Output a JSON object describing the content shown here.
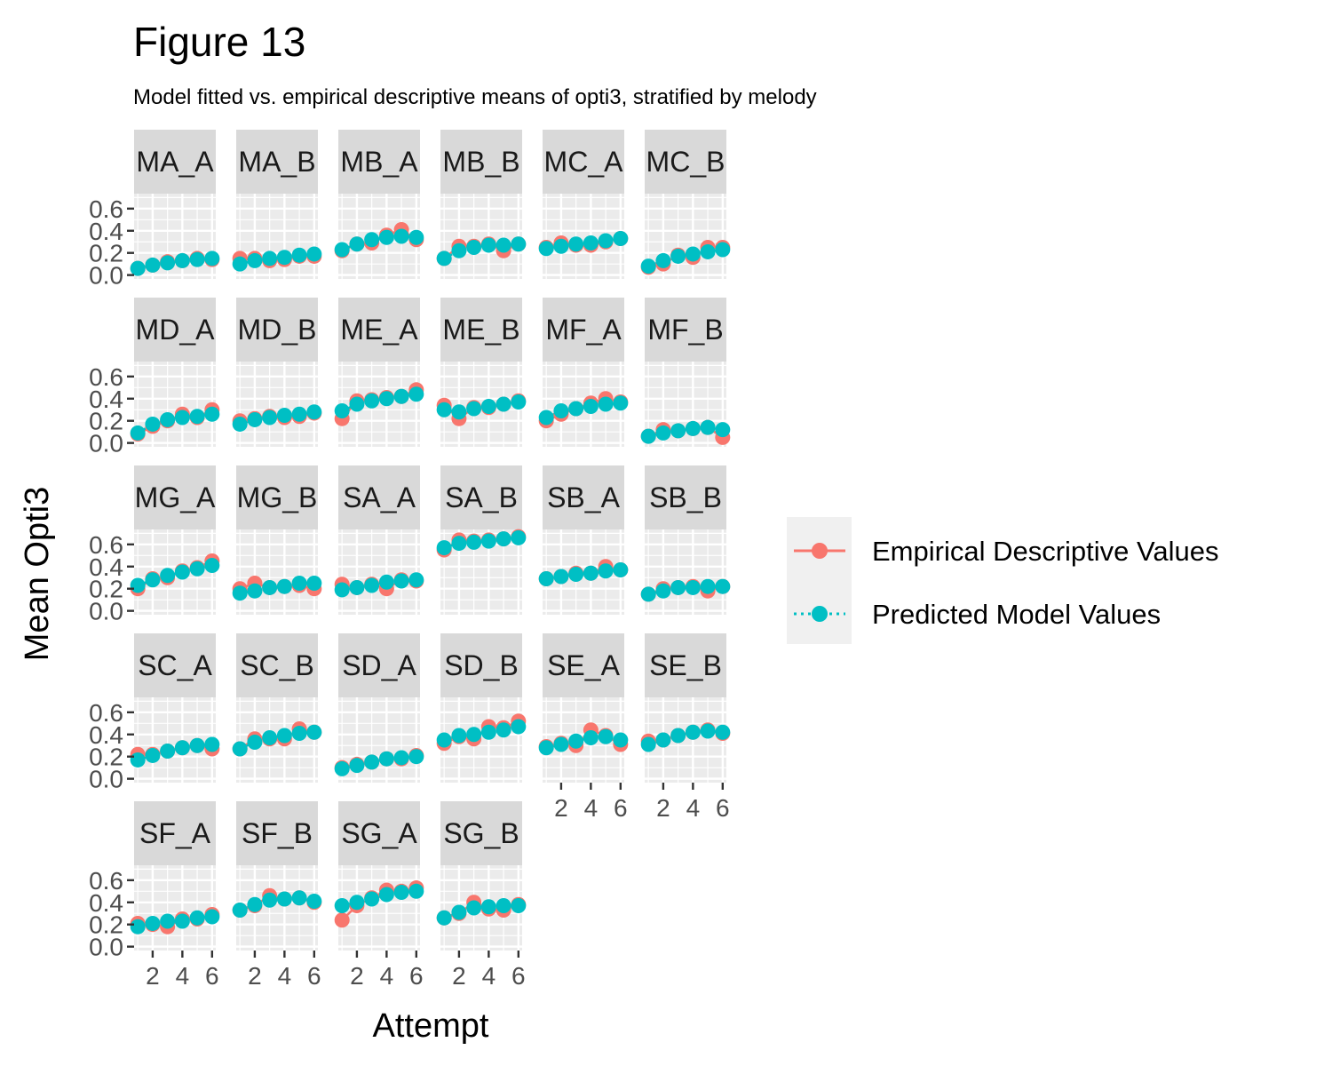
{
  "title": "Figure 13",
  "subtitle": "Model fitted vs. empirical descriptive means of opti3, stratified by melody",
  "chart_data": {
    "type": "line",
    "facet": "melody",
    "xlabel": "Attempt",
    "ylabel": "Mean Opti3",
    "xlim": [
      1,
      6
    ],
    "ylim": [
      0,
      0.7
    ],
    "x_ticks": [
      2,
      4,
      6
    ],
    "y_ticks": [
      0.0,
      0.2,
      0.4,
      0.6
    ],
    "x_tick_labels": [
      "2",
      "4",
      "6"
    ],
    "y_tick_labels": [
      "0.0",
      "0.2",
      "0.4",
      "0.6"
    ],
    "x": [
      1,
      2,
      3,
      4,
      5,
      6
    ],
    "grid": true,
    "legend_position": "right",
    "series_styles": [
      {
        "name": "Empirical Descriptive Values",
        "color": "#F8766D",
        "linetype": "solid"
      },
      {
        "name": "Predicted Model Values",
        "color": "#00BFC4",
        "linetype": "dotted"
      }
    ],
    "panels": [
      {
        "label": "MA_A",
        "empirical": [
          0.06,
          0.09,
          0.12,
          0.13,
          0.15,
          0.14
        ],
        "predicted": [
          0.06,
          0.09,
          0.11,
          0.13,
          0.14,
          0.15
        ]
      },
      {
        "label": "MA_B",
        "empirical": [
          0.15,
          0.15,
          0.13,
          0.14,
          0.17,
          0.17
        ],
        "predicted": [
          0.1,
          0.13,
          0.15,
          0.16,
          0.18,
          0.19
        ]
      },
      {
        "label": "MB_A",
        "empirical": [
          0.22,
          0.28,
          0.29,
          0.36,
          0.41,
          0.32
        ],
        "predicted": [
          0.23,
          0.28,
          0.32,
          0.34,
          0.35,
          0.34
        ]
      },
      {
        "label": "MB_B",
        "empirical": [
          0.15,
          0.26,
          0.26,
          0.28,
          0.22,
          0.28
        ],
        "predicted": [
          0.15,
          0.22,
          0.25,
          0.27,
          0.27,
          0.28
        ]
      },
      {
        "label": "MC_A",
        "empirical": [
          0.25,
          0.29,
          0.27,
          0.27,
          0.3,
          0.33
        ],
        "predicted": [
          0.24,
          0.26,
          0.28,
          0.29,
          0.31,
          0.33
        ]
      },
      {
        "label": "MC_B",
        "empirical": [
          0.07,
          0.1,
          0.18,
          0.16,
          0.25,
          0.25
        ],
        "predicted": [
          0.08,
          0.13,
          0.17,
          0.19,
          0.21,
          0.23
        ]
      },
      {
        "label": "MD_A",
        "empirical": [
          0.08,
          0.15,
          0.2,
          0.26,
          0.23,
          0.3
        ],
        "predicted": [
          0.09,
          0.17,
          0.21,
          0.23,
          0.24,
          0.26
        ]
      },
      {
        "label": "MD_B",
        "empirical": [
          0.2,
          0.22,
          0.24,
          0.23,
          0.24,
          0.27
        ],
        "predicted": [
          0.17,
          0.21,
          0.23,
          0.25,
          0.26,
          0.28
        ]
      },
      {
        "label": "ME_A",
        "empirical": [
          0.22,
          0.38,
          0.39,
          0.41,
          0.42,
          0.48
        ],
        "predicted": [
          0.29,
          0.35,
          0.38,
          0.4,
          0.42,
          0.44
        ]
      },
      {
        "label": "ME_B",
        "empirical": [
          0.34,
          0.22,
          0.32,
          0.32,
          0.35,
          0.38
        ],
        "predicted": [
          0.3,
          0.28,
          0.31,
          0.33,
          0.35,
          0.37
        ]
      },
      {
        "label": "MF_A",
        "empirical": [
          0.2,
          0.26,
          0.31,
          0.36,
          0.4,
          0.37
        ],
        "predicted": [
          0.23,
          0.29,
          0.31,
          0.33,
          0.35,
          0.36
        ]
      },
      {
        "label": "MF_B",
        "empirical": [
          0.06,
          0.12,
          0.11,
          0.13,
          0.14,
          0.05
        ],
        "predicted": [
          0.06,
          0.09,
          0.11,
          0.13,
          0.14,
          0.12
        ]
      },
      {
        "label": "MG_A",
        "empirical": [
          0.2,
          0.29,
          0.3,
          0.36,
          0.39,
          0.45
        ],
        "predicted": [
          0.23,
          0.28,
          0.32,
          0.35,
          0.38,
          0.41
        ]
      },
      {
        "label": "MG_B",
        "empirical": [
          0.2,
          0.25,
          0.21,
          0.22,
          0.23,
          0.2
        ],
        "predicted": [
          0.16,
          0.18,
          0.21,
          0.22,
          0.25,
          0.25
        ]
      },
      {
        "label": "SA_A",
        "empirical": [
          0.24,
          0.21,
          0.24,
          0.2,
          0.28,
          0.27
        ],
        "predicted": [
          0.19,
          0.21,
          0.23,
          0.26,
          0.27,
          0.28
        ]
      },
      {
        "label": "SA_B",
        "empirical": [
          0.55,
          0.64,
          0.63,
          0.64,
          0.65,
          0.67
        ],
        "predicted": [
          0.57,
          0.61,
          0.62,
          0.63,
          0.65,
          0.66
        ]
      },
      {
        "label": "SB_A",
        "empirical": [
          0.29,
          0.31,
          0.34,
          0.34,
          0.4,
          0.37
        ],
        "predicted": [
          0.29,
          0.31,
          0.33,
          0.34,
          0.36,
          0.37
        ]
      },
      {
        "label": "SB_B",
        "empirical": [
          0.15,
          0.2,
          0.21,
          0.22,
          0.18,
          0.22
        ],
        "predicted": [
          0.15,
          0.18,
          0.21,
          0.21,
          0.22,
          0.22
        ]
      },
      {
        "label": "SC_A",
        "empirical": [
          0.22,
          0.22,
          0.25,
          0.28,
          0.3,
          0.27
        ],
        "predicted": [
          0.17,
          0.21,
          0.25,
          0.28,
          0.3,
          0.31
        ]
      },
      {
        "label": "SC_B",
        "empirical": [
          0.27,
          0.36,
          0.36,
          0.36,
          0.45,
          0.42
        ],
        "predicted": [
          0.27,
          0.33,
          0.37,
          0.39,
          0.41,
          0.42
        ]
      },
      {
        "label": "SD_A",
        "empirical": [
          0.1,
          0.13,
          0.15,
          0.18,
          0.18,
          0.21
        ],
        "predicted": [
          0.09,
          0.12,
          0.15,
          0.18,
          0.19,
          0.2
        ]
      },
      {
        "label": "SD_B",
        "empirical": [
          0.32,
          0.38,
          0.36,
          0.47,
          0.46,
          0.52
        ],
        "predicted": [
          0.35,
          0.39,
          0.4,
          0.42,
          0.44,
          0.47
        ]
      },
      {
        "label": "SE_A",
        "empirical": [
          0.29,
          0.32,
          0.3,
          0.44,
          0.39,
          0.31
        ],
        "predicted": [
          0.28,
          0.31,
          0.34,
          0.37,
          0.38,
          0.35
        ]
      },
      {
        "label": "SE_B",
        "empirical": [
          0.34,
          0.35,
          0.39,
          0.42,
          0.44,
          0.41
        ],
        "predicted": [
          0.31,
          0.35,
          0.39,
          0.42,
          0.43,
          0.42
        ]
      },
      {
        "label": "SF_A",
        "empirical": [
          0.21,
          0.2,
          0.18,
          0.25,
          0.25,
          0.29
        ],
        "predicted": [
          0.18,
          0.21,
          0.23,
          0.23,
          0.26,
          0.27
        ]
      },
      {
        "label": "SF_B",
        "empirical": [
          0.33,
          0.37,
          0.46,
          0.43,
          0.44,
          0.4
        ],
        "predicted": [
          0.33,
          0.38,
          0.42,
          0.43,
          0.44,
          0.41
        ]
      },
      {
        "label": "SG_A",
        "empirical": [
          0.24,
          0.37,
          0.44,
          0.51,
          0.5,
          0.53
        ],
        "predicted": [
          0.37,
          0.4,
          0.43,
          0.47,
          0.49,
          0.5
        ]
      },
      {
        "label": "SG_B",
        "empirical": [
          0.26,
          0.3,
          0.4,
          0.34,
          0.33,
          0.38
        ],
        "predicted": [
          0.26,
          0.31,
          0.35,
          0.36,
          0.37,
          0.37
        ]
      }
    ]
  }
}
